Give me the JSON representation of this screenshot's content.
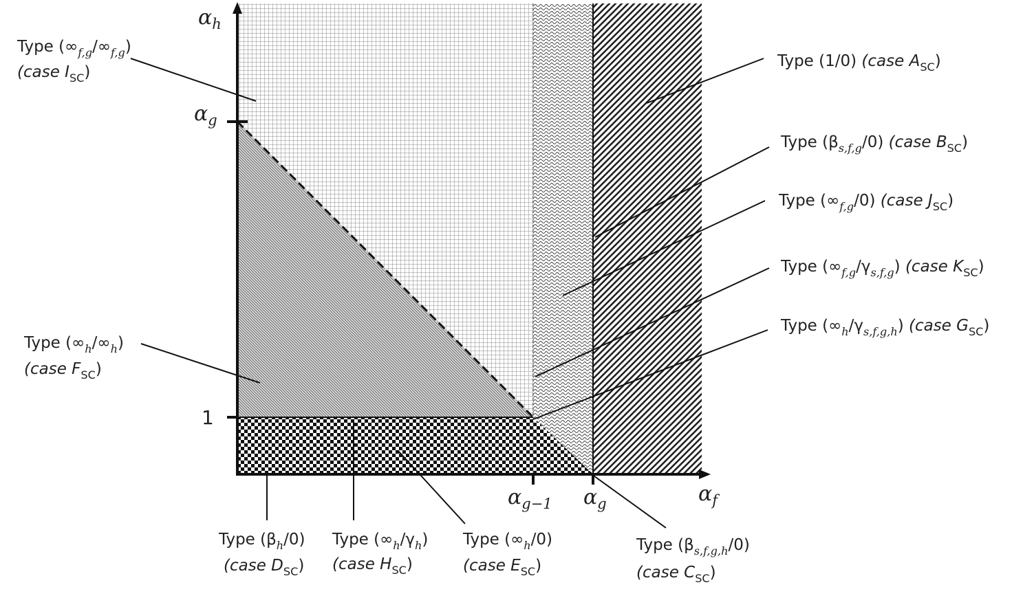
{
  "axes": {
    "y_label": [
      "α",
      {
        "sub": "h"
      }
    ],
    "x_label": [
      "α",
      {
        "sub": "f"
      }
    ],
    "y_ticks": [
      [
        "α",
        {
          "sub": "g"
        }
      ],
      [
        "1"
      ]
    ],
    "x_ticks": [
      [
        "α",
        {
          "sub": "g−1"
        }
      ],
      [
        "α",
        {
          "sub": "g"
        }
      ]
    ]
  },
  "regions": [
    {
      "lines": [
        [
          "Type (∞",
          {
            "sub": "f,g"
          },
          "/∞",
          {
            "sub": "f,g"
          },
          ")"
        ],
        [
          {
            "it": "(case I"
          },
          {
            "sub": "SC"
          },
          ")"
        ]
      ]
    },
    {
      "lines": [
        [
          "Type (1/0) ",
          {
            "it": "(case A"
          },
          {
            "sub": "SC"
          },
          ")"
        ]
      ]
    },
    {
      "lines": [
        [
          "Type (β",
          {
            "sub": "s,f,g"
          },
          "/0) ",
          {
            "it": "(case B"
          },
          {
            "sub": "SC"
          },
          ")"
        ]
      ]
    },
    {
      "lines": [
        [
          "Type (∞",
          {
            "sub": "f,g"
          },
          "/0) ",
          {
            "it": "(case J"
          },
          {
            "sub": "SC"
          },
          ")"
        ]
      ]
    },
    {
      "lines": [
        [
          "Type (∞",
          {
            "sub": "f,g"
          },
          "/γ",
          {
            "sub": "s,f,g"
          },
          ") ",
          {
            "it": "(case K"
          },
          {
            "sub": "SC"
          },
          ")"
        ]
      ]
    },
    {
      "lines": [
        [
          "Type (∞",
          {
            "sub": "h"
          },
          "/γ",
          {
            "sub": "s,f,g,h"
          },
          ") ",
          {
            "it": "(case G"
          },
          {
            "sub": "SC"
          },
          ")"
        ]
      ]
    },
    {
      "lines": [
        [
          "Type (∞",
          {
            "sub": "h"
          },
          "/∞",
          {
            "sub": "h"
          },
          ")"
        ],
        [
          {
            "it": "(case F"
          },
          {
            "sub": "SC"
          },
          ")"
        ]
      ]
    },
    {
      "lines": [
        [
          "Type (β",
          {
            "sub": "h"
          },
          "/0)"
        ],
        [
          {
            "it": "(case D"
          },
          {
            "sub": "SC"
          },
          ")"
        ]
      ]
    },
    {
      "lines": [
        [
          "Type (∞",
          {
            "sub": "h"
          },
          "/γ",
          {
            "sub": "h"
          },
          ")"
        ],
        [
          {
            "it": "(case H"
          },
          {
            "sub": "SC"
          },
          ")"
        ]
      ]
    },
    {
      "lines": [
        [
          "Type (∞",
          {
            "sub": "h"
          },
          "/0)"
        ],
        [
          {
            "it": "(case E"
          },
          {
            "sub": "SC"
          },
          ")"
        ]
      ]
    },
    {
      "lines": [
        [
          "Type (β",
          {
            "sub": "s,f,g,h"
          },
          "/0)"
        ],
        [
          {
            "it": "(case C"
          },
          {
            "sub": "SC"
          },
          ")"
        ]
      ]
    }
  ]
}
